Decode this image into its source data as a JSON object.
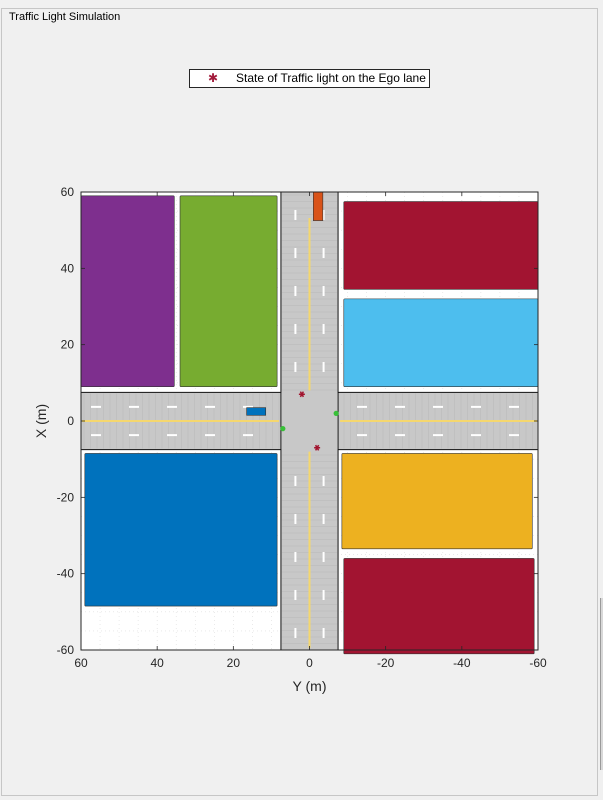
{
  "window": {
    "panel_title": "Traffic Light Simulation"
  },
  "legend": {
    "marker_icon": "red-asterisk-icon",
    "marker_glyph": "✱",
    "label": "State of Traffic light on the Ego lane"
  },
  "colors": {
    "purple": "#7e2f8e",
    "green": "#77ac30",
    "maroon": "#a21431",
    "light_blue": "#4dbeee",
    "blue": "#0072bd",
    "yellow": "#edb120",
    "road": "#c8c8c8",
    "lane_line": "#f5d76e",
    "vehicle_orange": "#d95319",
    "vehicle_blue": "#0072bd",
    "light_red": "#a2142f",
    "light_green": "#38c038"
  },
  "chart_data": {
    "type": "scene",
    "xlabel": "Y (m)",
    "ylabel": "X (m)",
    "xlim": [
      60,
      -60
    ],
    "ylim": [
      -60,
      60
    ],
    "x_ticks": [
      60,
      40,
      20,
      0,
      -20,
      -40,
      -60
    ],
    "y_ticks": [
      60,
      40,
      20,
      0,
      -20,
      -40,
      -60
    ],
    "buildings": [
      {
        "name": "purple",
        "y": [
          60,
          35.5
        ],
        "x": [
          59,
          9
        ]
      },
      {
        "name": "green",
        "y": [
          34,
          8.5
        ],
        "x": [
          59,
          9
        ]
      },
      {
        "name": "maroon",
        "y": [
          -9,
          -60
        ],
        "x": [
          57.5,
          34.5
        ]
      },
      {
        "name": "light_blue",
        "y": [
          -9,
          -60
        ],
        "x": [
          32,
          9
        ]
      },
      {
        "name": "blue",
        "y": [
          59,
          8.5
        ],
        "x": [
          -8.5,
          -48.5
        ]
      },
      {
        "name": "yellow",
        "y": [
          -8.5,
          -58.5
        ],
        "x": [
          -8.5,
          -33.5
        ]
      },
      {
        "name": "maroon",
        "y": [
          -9,
          -59
        ],
        "x": [
          -36,
          -61
        ]
      }
    ],
    "vertical_road": {
      "y": [
        7.5,
        -7.5
      ],
      "x": [
        60,
        -60
      ]
    },
    "horizontal_road": {
      "y": [
        60,
        -60
      ],
      "x": [
        7.5,
        -7.5
      ]
    },
    "vehicles": [
      {
        "name": "orange-vehicle",
        "y": [
          -1,
          -3.5
        ],
        "x": [
          60,
          52.5
        ]
      },
      {
        "name": "blue-vehicle",
        "y": [
          16.5,
          11.5
        ],
        "x": [
          3.5,
          1.5
        ]
      }
    ],
    "traffic_lights": [
      {
        "state": "red",
        "y": 2,
        "x": 7
      },
      {
        "state": "green",
        "y": -7,
        "x": 2
      },
      {
        "state": "green",
        "y": 7,
        "x": -2
      },
      {
        "state": "red",
        "y": -2,
        "x": -7
      }
    ]
  }
}
